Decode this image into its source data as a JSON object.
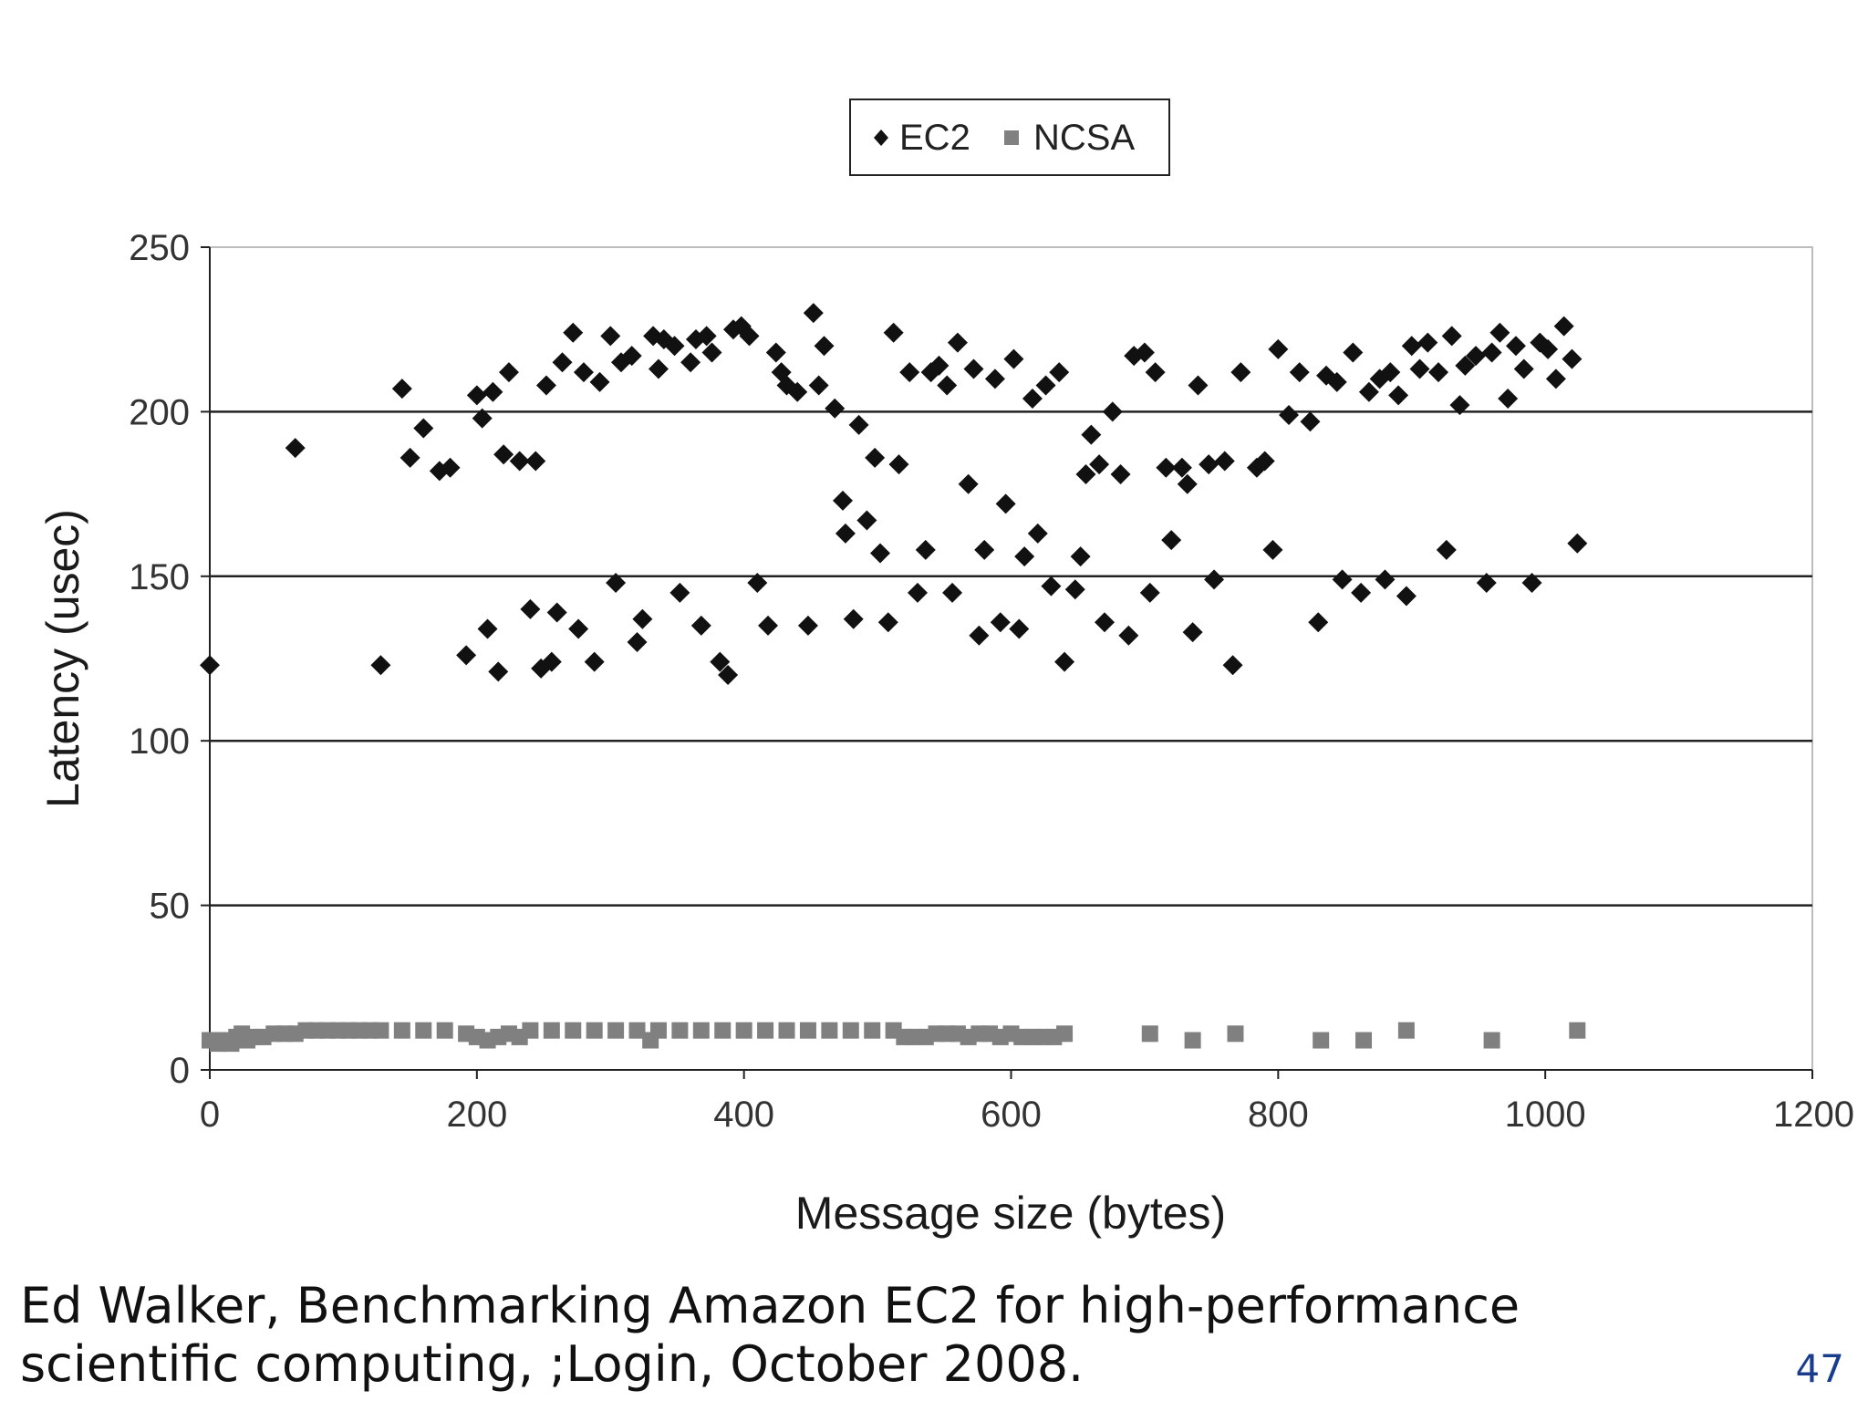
{
  "citation": {
    "line1": "Ed Walker, Benchmarking Amazon EC2 for high-performance",
    "line2": "scientific computing, ;Login, October 2008."
  },
  "page_number": "47",
  "chart_data": {
    "type": "scatter",
    "title": "",
    "xlabel": "Message size (bytes)",
    "ylabel": "Latency (usec)",
    "xlim": [
      0,
      1200
    ],
    "ylim": [
      0,
      250
    ],
    "x_ticks": [
      0,
      200,
      400,
      600,
      800,
      1000,
      1200
    ],
    "y_ticks": [
      0,
      50,
      100,
      150,
      200,
      250
    ],
    "grid": "horizontal",
    "legend": "top-center",
    "series": [
      {
        "name": "EC2",
        "marker": "diamond",
        "color": "#111111",
        "points": [
          [
            0,
            123
          ],
          [
            64,
            189
          ],
          [
            128,
            123
          ],
          [
            144,
            207
          ],
          [
            150,
            186
          ],
          [
            160,
            195
          ],
          [
            172,
            182
          ],
          [
            180,
            183
          ],
          [
            192,
            126
          ],
          [
            200,
            205
          ],
          [
            204,
            198
          ],
          [
            208,
            134
          ],
          [
            212,
            206
          ],
          [
            216,
            121
          ],
          [
            220,
            187
          ],
          [
            224,
            212
          ],
          [
            232,
            185
          ],
          [
            240,
            140
          ],
          [
            244,
            185
          ],
          [
            248,
            122
          ],
          [
            252,
            208
          ],
          [
            256,
            124
          ],
          [
            260,
            139
          ],
          [
            264,
            215
          ],
          [
            272,
            224
          ],
          [
            276,
            134
          ],
          [
            280,
            212
          ],
          [
            288,
            124
          ],
          [
            292,
            209
          ],
          [
            300,
            223
          ],
          [
            304,
            148
          ],
          [
            308,
            215
          ],
          [
            316,
            217
          ],
          [
            320,
            130
          ],
          [
            324,
            137
          ],
          [
            332,
            223
          ],
          [
            336,
            213
          ],
          [
            340,
            222
          ],
          [
            348,
            220
          ],
          [
            352,
            145
          ],
          [
            360,
            215
          ],
          [
            364,
            222
          ],
          [
            368,
            135
          ],
          [
            372,
            223
          ],
          [
            376,
            218
          ],
          [
            382,
            124
          ],
          [
            388,
            120
          ],
          [
            392,
            225
          ],
          [
            398,
            226
          ],
          [
            404,
            223
          ],
          [
            410,
            148
          ],
          [
            418,
            135
          ],
          [
            424,
            218
          ],
          [
            428,
            212
          ],
          [
            432,
            208
          ],
          [
            440,
            206
          ],
          [
            448,
            135
          ],
          [
            452,
            230
          ],
          [
            456,
            208
          ],
          [
            460,
            220
          ],
          [
            468,
            201
          ],
          [
            474,
            173
          ],
          [
            476,
            163
          ],
          [
            482,
            137
          ],
          [
            486,
            196
          ],
          [
            492,
            167
          ],
          [
            498,
            186
          ],
          [
            502,
            157
          ],
          [
            508,
            136
          ],
          [
            512,
            224
          ],
          [
            516,
            184
          ],
          [
            524,
            212
          ],
          [
            530,
            145
          ],
          [
            536,
            158
          ],
          [
            540,
            212
          ],
          [
            546,
            214
          ],
          [
            552,
            208
          ],
          [
            556,
            145
          ],
          [
            560,
            221
          ],
          [
            568,
            178
          ],
          [
            572,
            213
          ],
          [
            576,
            132
          ],
          [
            580,
            158
          ],
          [
            588,
            210
          ],
          [
            592,
            136
          ],
          [
            596,
            172
          ],
          [
            602,
            216
          ],
          [
            606,
            134
          ],
          [
            610,
            156
          ],
          [
            616,
            204
          ],
          [
            620,
            163
          ],
          [
            626,
            208
          ],
          [
            630,
            147
          ],
          [
            636,
            212
          ],
          [
            640,
            124
          ],
          [
            648,
            146
          ],
          [
            652,
            156
          ],
          [
            656,
            181
          ],
          [
            660,
            193
          ],
          [
            666,
            184
          ],
          [
            670,
            136
          ],
          [
            676,
            200
          ],
          [
            682,
            181
          ],
          [
            688,
            132
          ],
          [
            692,
            217
          ],
          [
            700,
            218
          ],
          [
            704,
            145
          ],
          [
            708,
            212
          ],
          [
            716,
            183
          ],
          [
            720,
            161
          ],
          [
            728,
            183
          ],
          [
            732,
            178
          ],
          [
            736,
            133
          ],
          [
            740,
            208
          ],
          [
            748,
            184
          ],
          [
            752,
            149
          ],
          [
            760,
            185
          ],
          [
            766,
            123
          ],
          [
            772,
            212
          ],
          [
            784,
            183
          ],
          [
            790,
            185
          ],
          [
            796,
            158
          ],
          [
            800,
            219
          ],
          [
            808,
            199
          ],
          [
            816,
            212
          ],
          [
            824,
            197
          ],
          [
            830,
            136
          ],
          [
            836,
            211
          ],
          [
            844,
            209
          ],
          [
            848,
            149
          ],
          [
            856,
            218
          ],
          [
            862,
            145
          ],
          [
            868,
            206
          ],
          [
            876,
            210
          ],
          [
            880,
            149
          ],
          [
            884,
            212
          ],
          [
            890,
            205
          ],
          [
            896,
            144
          ],
          [
            900,
            220
          ],
          [
            906,
            213
          ],
          [
            912,
            221
          ],
          [
            920,
            212
          ],
          [
            926,
            158
          ],
          [
            930,
            223
          ],
          [
            936,
            202
          ],
          [
            940,
            214
          ],
          [
            948,
            217
          ],
          [
            956,
            148
          ],
          [
            960,
            218
          ],
          [
            966,
            224
          ],
          [
            972,
            204
          ],
          [
            978,
            220
          ],
          [
            984,
            213
          ],
          [
            990,
            148
          ],
          [
            996,
            221
          ],
          [
            1002,
            219
          ],
          [
            1008,
            210
          ],
          [
            1014,
            226
          ],
          [
            1020,
            216
          ],
          [
            1024,
            160
          ]
        ]
      },
      {
        "name": "NCSA",
        "marker": "square",
        "color": "#808080",
        "points": [
          [
            0,
            9
          ],
          [
            6,
            8
          ],
          [
            12,
            9
          ],
          [
            16,
            8
          ],
          [
            20,
            10
          ],
          [
            24,
            11
          ],
          [
            28,
            9
          ],
          [
            32,
            10
          ],
          [
            40,
            10
          ],
          [
            48,
            11
          ],
          [
            56,
            11
          ],
          [
            64,
            11
          ],
          [
            72,
            12
          ],
          [
            80,
            12
          ],
          [
            88,
            12
          ],
          [
            96,
            12
          ],
          [
            104,
            12
          ],
          [
            112,
            12
          ],
          [
            120,
            12
          ],
          [
            128,
            12
          ],
          [
            144,
            12
          ],
          [
            160,
            12
          ],
          [
            176,
            12
          ],
          [
            192,
            11
          ],
          [
            200,
            10
          ],
          [
            208,
            9
          ],
          [
            216,
            10
          ],
          [
            224,
            11
          ],
          [
            232,
            10
          ],
          [
            240,
            12
          ],
          [
            256,
            12
          ],
          [
            272,
            12
          ],
          [
            288,
            12
          ],
          [
            304,
            12
          ],
          [
            320,
            12
          ],
          [
            330,
            9
          ],
          [
            336,
            12
          ],
          [
            352,
            12
          ],
          [
            368,
            12
          ],
          [
            384,
            12
          ],
          [
            400,
            12
          ],
          [
            416,
            12
          ],
          [
            432,
            12
          ],
          [
            448,
            12
          ],
          [
            464,
            12
          ],
          [
            480,
            12
          ],
          [
            496,
            12
          ],
          [
            512,
            12
          ],
          [
            520,
            10
          ],
          [
            528,
            10
          ],
          [
            536,
            10
          ],
          [
            544,
            11
          ],
          [
            552,
            11
          ],
          [
            560,
            11
          ],
          [
            568,
            10
          ],
          [
            576,
            11
          ],
          [
            584,
            11
          ],
          [
            592,
            10
          ],
          [
            600,
            11
          ],
          [
            608,
            10
          ],
          [
            616,
            10
          ],
          [
            624,
            10
          ],
          [
            632,
            10
          ],
          [
            640,
            11
          ],
          [
            704,
            11
          ],
          [
            736,
            9
          ],
          [
            768,
            11
          ],
          [
            832,
            9
          ],
          [
            864,
            9
          ],
          [
            896,
            12
          ],
          [
            960,
            9
          ],
          [
            1024,
            12
          ]
        ]
      }
    ]
  }
}
